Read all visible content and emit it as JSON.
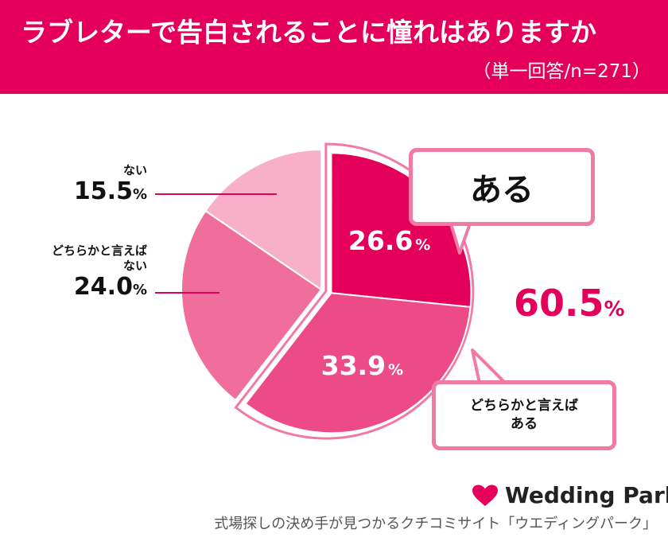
{
  "header": {
    "title": "ラブレターで告白されることに憧れはありますか",
    "subtitle": "（単一回答/n=271）"
  },
  "chart_data": {
    "type": "pie",
    "slices": [
      {
        "label": "ある",
        "value": 26.6,
        "value_text": "26.6",
        "color": "#e4005a"
      },
      {
        "label": "どちらかと言えばある",
        "value": 33.9,
        "value_text": "33.9",
        "color": "#ec4b87"
      },
      {
        "label": "どちらかと言えばない",
        "value": 24.0,
        "value_text": "24.0",
        "color": "#f06e9b"
      },
      {
        "label": "ない",
        "value": 15.5,
        "value_text": "15.5",
        "color": "#f8b0c8"
      }
    ],
    "percent_sign": "%"
  },
  "callouts": {
    "aru": "ある",
    "dochira_line1": "どちらかと言えば",
    "dochira_line2": "ある"
  },
  "side_labels": {
    "nai_cat": "ない",
    "nai_val": "15.5",
    "dochira_nai_cat_line1": "どちらかと言えば",
    "dochira_nai_cat_line2": "ない",
    "dochira_nai_val": "24.0",
    "pct": "%"
  },
  "total": {
    "value": "60.5",
    "pct": "%"
  },
  "brand": {
    "name": "Wedding Park",
    "color": "#e4005a"
  },
  "footer": "式場探しの決め手が見つかるクチコミサイト「ウエディングパーク」"
}
